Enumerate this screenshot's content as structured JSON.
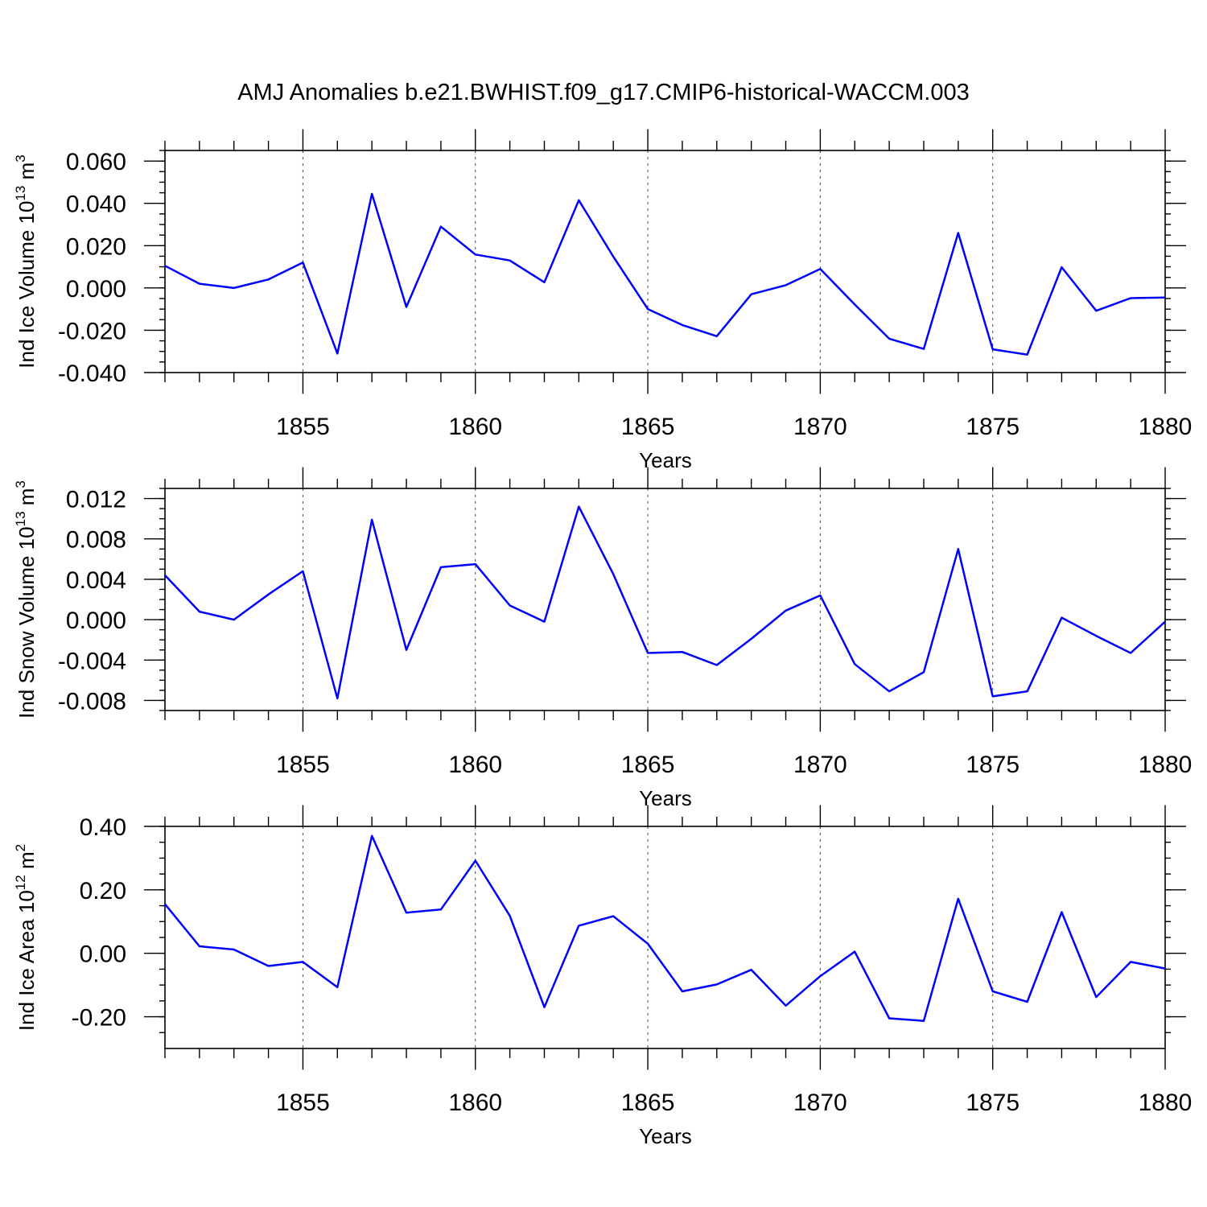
{
  "title": "AMJ Anomalies b.e21.BWHIST.f09_g17.CMIP6-historical-WACCM.003",
  "colors": {
    "series": "#0000ff",
    "axis": "#000000"
  },
  "chart_data": [
    {
      "type": "line",
      "ylabel": "Ind Ice Volume 10",
      "ylabel_exp": "13",
      "ylabel_unit": " m",
      "ylabel_unit_exp": "3",
      "xlabel": "Years",
      "xlim": [
        1851,
        1880
      ],
      "ylim": [
        -0.04,
        0.065
      ],
      "x_ticks": [
        1855,
        1860,
        1865,
        1870,
        1875,
        1880
      ],
      "y_ticks": [
        -0.04,
        -0.02,
        0.0,
        0.02,
        0.04,
        0.06
      ],
      "y_tick_labels": [
        "-0.040",
        "-0.020",
        "0.000",
        "0.020",
        "0.040",
        "0.060"
      ],
      "y_minor_step": 0.005,
      "x": [
        1851,
        1852,
        1853,
        1854,
        1855,
        1856,
        1857,
        1858,
        1859,
        1860,
        1861,
        1862,
        1863,
        1864,
        1865,
        1866,
        1867,
        1868,
        1869,
        1870,
        1871,
        1872,
        1873,
        1874,
        1875,
        1876,
        1877,
        1878,
        1879,
        1880
      ],
      "values": [
        0.0105,
        0.002,
        0.0,
        0.004,
        0.012,
        -0.031,
        0.0445,
        -0.009,
        0.029,
        0.0158,
        0.013,
        0.0027,
        0.0415,
        0.0148,
        -0.01,
        -0.0175,
        -0.0228,
        -0.003,
        0.0013,
        0.009,
        -0.0078,
        -0.024,
        -0.0288,
        0.026,
        -0.029,
        -0.0315,
        0.0098,
        -0.0108,
        -0.0048,
        -0.0045
      ],
      "grid": "dashed vertical at major x ticks"
    },
    {
      "type": "line",
      "ylabel": "Ind Snow Volume 10",
      "ylabel_exp": "13",
      "ylabel_unit": " m",
      "ylabel_unit_exp": "3",
      "xlabel": "Years",
      "xlim": [
        1851,
        1880
      ],
      "ylim": [
        -0.009,
        0.013
      ],
      "x_ticks": [
        1855,
        1860,
        1865,
        1870,
        1875,
        1880
      ],
      "y_ticks": [
        -0.008,
        -0.004,
        0.0,
        0.004,
        0.008,
        0.012
      ],
      "y_tick_labels": [
        "-0.008",
        "-0.004",
        "0.000",
        "0.004",
        "0.008",
        "0.012"
      ],
      "y_minor_step": 0.001,
      "x": [
        1851,
        1852,
        1853,
        1854,
        1855,
        1856,
        1857,
        1858,
        1859,
        1860,
        1861,
        1862,
        1863,
        1864,
        1865,
        1866,
        1867,
        1868,
        1869,
        1870,
        1871,
        1872,
        1873,
        1874,
        1875,
        1876,
        1877,
        1878,
        1879,
        1880
      ],
      "values": [
        0.0044,
        0.0008,
        0.0,
        0.0025,
        0.0048,
        -0.0078,
        0.0099,
        -0.003,
        0.0052,
        0.0055,
        0.0014,
        -0.0002,
        0.0112,
        0.0045,
        -0.0033,
        -0.0032,
        -0.0045,
        -0.0019,
        0.0009,
        0.0024,
        -0.0044,
        -0.0071,
        -0.0052,
        0.007,
        -0.0076,
        -0.0071,
        0.0002,
        -0.0016,
        -0.0033,
        -0.0002
      ],
      "grid": "dashed vertical at major x ticks"
    },
    {
      "type": "line",
      "ylabel": "Ind Ice Area 10",
      "ylabel_exp": "12",
      "ylabel_unit": " m",
      "ylabel_unit_exp": "2",
      "xlabel": "Years",
      "xlim": [
        1851,
        1880
      ],
      "ylim": [
        -0.3,
        0.4
      ],
      "x_ticks": [
        1855,
        1860,
        1865,
        1870,
        1875,
        1880
      ],
      "y_ticks": [
        -0.2,
        0.0,
        0.2,
        0.4
      ],
      "y_tick_labels": [
        "-0.20",
        "0.00",
        "0.20",
        "0.40"
      ],
      "y_minor_step": 0.05,
      "x": [
        1851,
        1852,
        1853,
        1854,
        1855,
        1856,
        1857,
        1858,
        1859,
        1860,
        1861,
        1862,
        1863,
        1864,
        1865,
        1866,
        1867,
        1868,
        1869,
        1870,
        1871,
        1872,
        1873,
        1874,
        1875,
        1876,
        1877,
        1878,
        1879,
        1880
      ],
      "values": [
        0.155,
        0.022,
        0.012,
        -0.04,
        -0.027,
        -0.107,
        0.37,
        0.128,
        0.138,
        0.292,
        0.118,
        -0.17,
        0.087,
        0.117,
        0.03,
        -0.12,
        -0.098,
        -0.052,
        -0.165,
        -0.072,
        0.005,
        -0.205,
        -0.213,
        0.172,
        -0.12,
        -0.153,
        0.13,
        -0.138,
        -0.027,
        -0.048
      ],
      "grid": "dashed vertical at major x ticks"
    }
  ]
}
